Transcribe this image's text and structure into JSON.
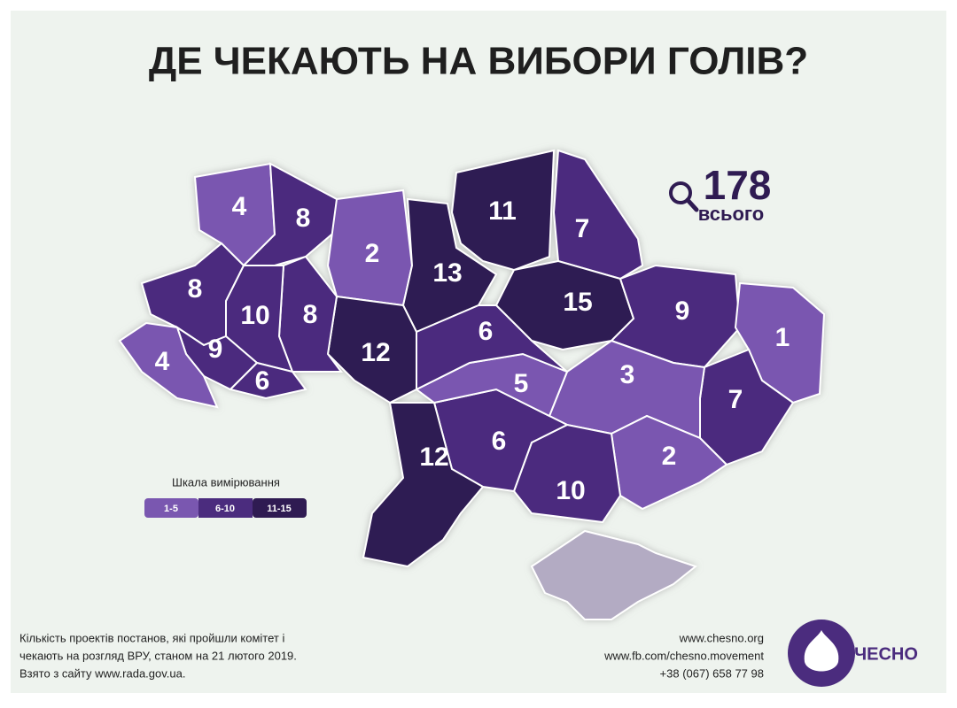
{
  "header": {
    "title": "ДЕ ЧЕКАЮТЬ НА ВИБОРИ ГОЛІВ?"
  },
  "total": {
    "value": "178",
    "label": "всього"
  },
  "map": {
    "crimea_color": "#b3abc3",
    "regions": [
      {
        "value": 4,
        "color": "#7a57b0"
      },
      {
        "value": 8,
        "color": "#4b2c7e"
      },
      {
        "value": 2,
        "color": "#7a57b0"
      },
      {
        "value": 13,
        "color": "#2f1b52"
      },
      {
        "value": 11,
        "color": "#2f1b52"
      },
      {
        "value": 7,
        "color": "#4b2c7e"
      },
      {
        "value": 15,
        "color": "#2f1b52"
      },
      {
        "value": 9,
        "color": "#4b2c7e"
      },
      {
        "value": 1,
        "color": "#7a57b0"
      },
      {
        "value": 7,
        "color": "#4b2c7e"
      },
      {
        "value": 3,
        "color": "#7a57b0"
      },
      {
        "value": 2,
        "color": "#7a57b0"
      },
      {
        "value": 10,
        "color": "#4b2c7e"
      },
      {
        "value": 6,
        "color": "#4b2c7e"
      },
      {
        "value": 12,
        "color": "#2f1b52"
      },
      {
        "value": 5,
        "color": "#7a57b0"
      },
      {
        "value": 6,
        "color": "#4b2c7e"
      },
      {
        "value": 12,
        "color": "#2f1b52"
      },
      {
        "value": 8,
        "color": "#4b2c7e"
      },
      {
        "value": 10,
        "color": "#4b2c7e"
      },
      {
        "value": 8,
        "color": "#4b2c7e"
      },
      {
        "value": 9,
        "color": "#4b2c7e"
      },
      {
        "value": 4,
        "color": "#7a57b0"
      },
      {
        "value": 6,
        "color": "#4b2c7e"
      }
    ]
  },
  "legend": {
    "title": "Шкала вимірювання",
    "items": [
      {
        "label": "1-5",
        "color": "#7a57b0"
      },
      {
        "label": "6-10",
        "color": "#4b2c7e"
      },
      {
        "label": "11-15",
        "color": "#2f1b52"
      }
    ]
  },
  "footnote": [
    "Кількість проектів постанов, які пройшли комітет і",
    "чекають на розгляд  ВРУ, станом  на 21 лютого 2019.",
    "Взято з сайту www.rada.gov.ua."
  ],
  "contacts": [
    "www.chesno.org",
    "www.fb.com/chesno.movement",
    "+38 (067) 658 77 98"
  ],
  "logo": {
    "text": "ЧЕСНО"
  }
}
